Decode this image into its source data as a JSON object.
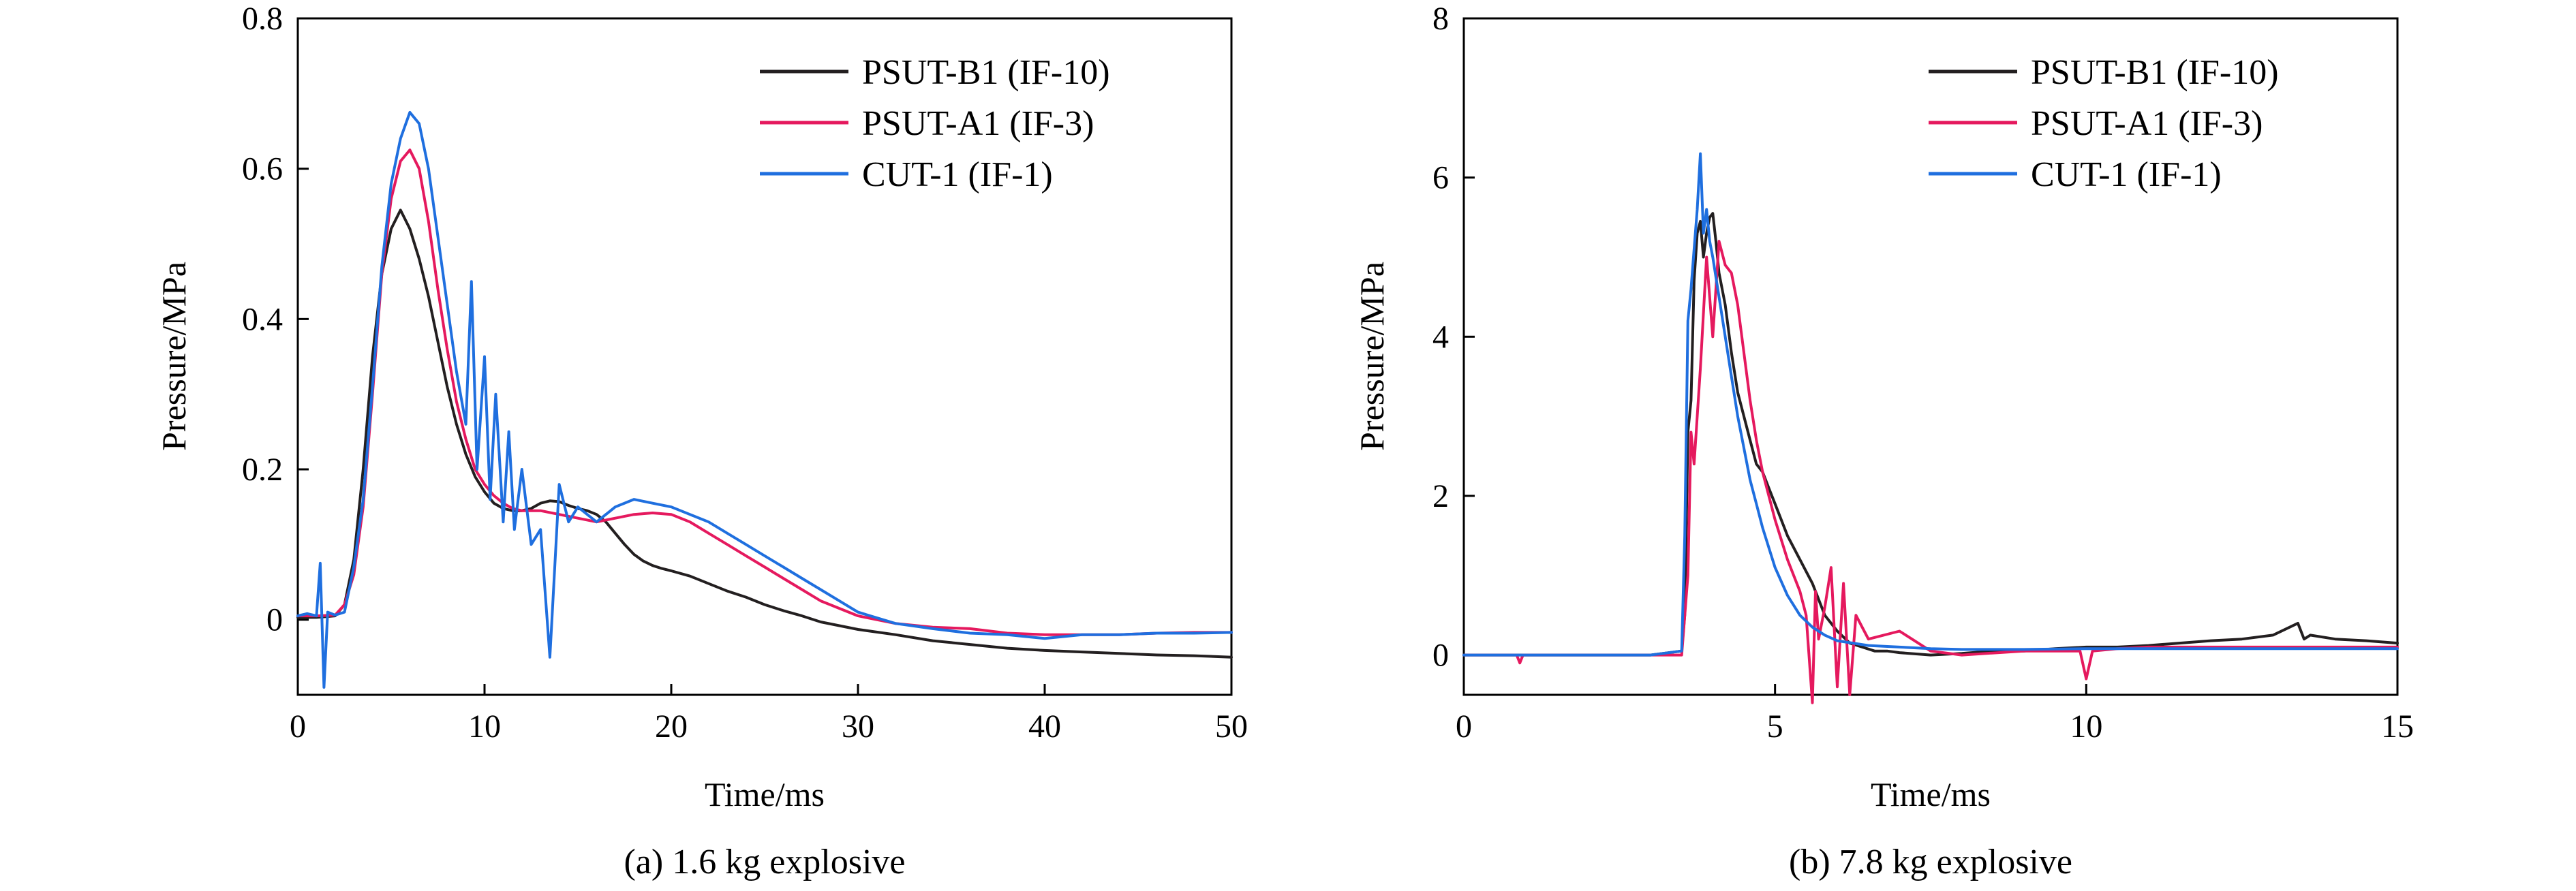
{
  "chart_data": [
    {
      "type": "line",
      "caption": "(a) 1.6 kg explosive",
      "xlabel": "Time/ms",
      "ylabel": "Pressure/MPa",
      "xlim": [
        0,
        50
      ],
      "ylim": [
        -0.1,
        0.8
      ],
      "xticks": [
        0,
        10,
        20,
        30,
        40,
        50
      ],
      "yticks": [
        0,
        0.2,
        0.4,
        0.6,
        0.8
      ],
      "ytick_labels": [
        "0",
        "0.2",
        "0.4",
        "0.6",
        "0.8"
      ],
      "legend_position": "top-right",
      "grid": false,
      "series": [
        {
          "name": "PSUT-B1 (IF-10)",
          "color": "#231f20",
          "x": [
            0,
            1,
            2,
            2.5,
            3,
            3.5,
            4,
            4.5,
            5,
            5.5,
            6,
            6.5,
            7,
            7.5,
            8,
            8.5,
            9,
            9.5,
            10,
            10.5,
            11,
            11.5,
            12,
            12.5,
            13,
            13.5,
            14,
            14.5,
            15,
            15.5,
            16,
            16.5,
            17,
            17.5,
            18,
            18.5,
            19,
            19.5,
            20,
            21,
            22,
            23,
            24,
            25,
            26,
            27,
            28,
            29,
            30,
            32,
            34,
            36,
            38,
            40,
            42,
            44,
            46,
            48,
            50
          ],
          "y": [
            0.003,
            0.003,
            0.005,
            0.02,
            0.08,
            0.2,
            0.35,
            0.46,
            0.52,
            0.545,
            0.52,
            0.48,
            0.43,
            0.37,
            0.31,
            0.26,
            0.22,
            0.19,
            0.17,
            0.155,
            0.148,
            0.145,
            0.145,
            0.148,
            0.155,
            0.158,
            0.157,
            0.152,
            0.148,
            0.145,
            0.14,
            0.13,
            0.115,
            0.1,
            0.087,
            0.078,
            0.072,
            0.068,
            0.065,
            0.058,
            0.048,
            0.038,
            0.03,
            0.02,
            0.012,
            0.005,
            -0.003,
            -0.008,
            -0.013,
            -0.02,
            -0.028,
            -0.033,
            -0.038,
            -0.041,
            -0.043,
            -0.045,
            -0.047,
            -0.048,
            -0.05
          ]
        },
        {
          "name": "PSUT-A1 (IF-3)",
          "color": "#e5195e",
          "x": [
            0,
            1,
            2,
            2.5,
            3,
            3.5,
            4,
            4.5,
            5,
            5.5,
            6,
            6.5,
            7,
            7.5,
            8,
            8.5,
            9,
            9.5,
            10,
            10.5,
            11,
            11.5,
            12,
            13,
            14,
            15,
            16,
            17,
            18,
            19,
            20,
            21,
            22,
            23,
            24,
            25,
            26,
            27,
            28,
            29,
            30,
            32,
            34,
            36,
            38,
            40,
            42,
            44,
            46,
            48,
            50
          ],
          "y": [
            0.005,
            0.005,
            0.006,
            0.02,
            0.06,
            0.15,
            0.3,
            0.46,
            0.56,
            0.61,
            0.625,
            0.6,
            0.53,
            0.44,
            0.36,
            0.29,
            0.24,
            0.2,
            0.18,
            0.165,
            0.155,
            0.148,
            0.145,
            0.145,
            0.14,
            0.135,
            0.13,
            0.135,
            0.14,
            0.142,
            0.14,
            0.13,
            0.115,
            0.1,
            0.085,
            0.07,
            0.055,
            0.04,
            0.025,
            0.015,
            0.005,
            -0.005,
            -0.01,
            -0.012,
            -0.018,
            -0.02,
            -0.02,
            -0.02,
            -0.018,
            -0.017,
            -0.017
          ]
        },
        {
          "name": "CUT-1 (IF-1)",
          "color": "#1f6fdf",
          "x": [
            0,
            0.5,
            1,
            1.2,
            1.4,
            1.6,
            2,
            2.5,
            3,
            3.5,
            4,
            4.5,
            5,
            5.5,
            6,
            6.5,
            7,
            7.5,
            8,
            8.5,
            9,
            9.3,
            9.6,
            10,
            10.3,
            10.6,
            11,
            11.3,
            11.6,
            12,
            12.5,
            13,
            13.5,
            14,
            14.5,
            15,
            16,
            17,
            18,
            19,
            20,
            21,
            22,
            23,
            24,
            25,
            26,
            27,
            28,
            29,
            30,
            32,
            34,
            36,
            38,
            40,
            42,
            44,
            46,
            48,
            50
          ],
          "y": [
            0.005,
            0.008,
            0.005,
            0.075,
            -0.09,
            0.01,
            0.006,
            0.01,
            0.07,
            0.16,
            0.31,
            0.47,
            0.58,
            0.64,
            0.675,
            0.66,
            0.6,
            0.51,
            0.42,
            0.33,
            0.26,
            0.45,
            0.2,
            0.35,
            0.16,
            0.3,
            0.13,
            0.25,
            0.12,
            0.2,
            0.1,
            0.12,
            -0.05,
            0.18,
            0.13,
            0.15,
            0.13,
            0.15,
            0.16,
            0.155,
            0.15,
            0.14,
            0.13,
            0.115,
            0.1,
            0.085,
            0.07,
            0.055,
            0.04,
            0.025,
            0.01,
            -0.005,
            -0.012,
            -0.018,
            -0.02,
            -0.025,
            -0.02,
            -0.02,
            -0.018,
            -0.018,
            -0.017
          ]
        }
      ]
    },
    {
      "type": "line",
      "caption": "(b) 7.8 kg explosive",
      "xlabel": "Time/ms",
      "ylabel": "Pressure/MPa",
      "xlim": [
        0,
        15
      ],
      "ylim": [
        -0.5,
        8
      ],
      "xticks": [
        0,
        5,
        10,
        15
      ],
      "yticks": [
        0,
        2,
        4,
        6,
        8
      ],
      "ytick_labels": [
        "0",
        "2",
        "4",
        "6",
        "8"
      ],
      "legend_position": "top-right",
      "grid": false,
      "series": [
        {
          "name": "PSUT-B1 (IF-10)",
          "color": "#231f20",
          "x": [
            0,
            3,
            3.5,
            3.55,
            3.6,
            3.65,
            3.7,
            3.75,
            3.8,
            3.85,
            3.9,
            3.95,
            4.0,
            4.05,
            4.1,
            4.2,
            4.3,
            4.4,
            4.5,
            4.6,
            4.7,
            4.8,
            4.9,
            5.0,
            5.2,
            5.4,
            5.6,
            5.8,
            6.0,
            6.2,
            6.4,
            6.6,
            6.8,
            7.0,
            7.5,
            8.0,
            8.5,
            9.0,
            9.5,
            10,
            10.5,
            11,
            11.5,
            12,
            12.5,
            13,
            13.4,
            13.5,
            13.6,
            14,
            14.5,
            15
          ],
          "y": [
            0.0,
            0.0,
            0.05,
            0.5,
            2.8,
            3.2,
            4.7,
            5.3,
            5.45,
            5.0,
            5.3,
            5.5,
            5.55,
            5.2,
            4.8,
            4.4,
            3.8,
            3.3,
            3.0,
            2.7,
            2.4,
            2.3,
            2.1,
            1.9,
            1.5,
            1.2,
            0.9,
            0.5,
            0.3,
            0.15,
            0.1,
            0.05,
            0.05,
            0.03,
            0.0,
            0.02,
            0.05,
            0.05,
            0.08,
            0.1,
            0.1,
            0.12,
            0.15,
            0.18,
            0.2,
            0.25,
            0.4,
            0.2,
            0.25,
            0.2,
            0.18,
            0.15
          ]
        },
        {
          "name": "PSUT-A1 (IF-3)",
          "color": "#e5195e",
          "x": [
            0,
            0.85,
            0.9,
            0.95,
            3,
            3.5,
            3.6,
            3.65,
            3.7,
            3.8,
            3.9,
            4.0,
            4.1,
            4.2,
            4.3,
            4.4,
            4.5,
            4.6,
            4.7,
            4.8,
            5.0,
            5.2,
            5.4,
            5.5,
            5.6,
            5.65,
            5.7,
            5.8,
            5.9,
            6.0,
            6.1,
            6.2,
            6.3,
            6.5,
            7.0,
            7.5,
            8.0,
            9.0,
            9.9,
            10.0,
            10.1,
            10.5,
            11,
            12,
            13,
            14,
            15
          ],
          "y": [
            0.0,
            0.0,
            -0.1,
            0.0,
            0.0,
            0.0,
            1.0,
            2.8,
            2.4,
            3.6,
            5.0,
            4.0,
            5.2,
            4.9,
            4.8,
            4.4,
            3.8,
            3.2,
            2.7,
            2.3,
            1.7,
            1.2,
            0.8,
            0.5,
            -0.6,
            0.8,
            0.2,
            0.6,
            1.1,
            -0.4,
            0.9,
            -0.5,
            0.5,
            0.2,
            0.3,
            0.05,
            0.0,
            0.05,
            0.05,
            -0.3,
            0.05,
            0.08,
            0.1,
            0.1,
            0.1,
            0.1,
            0.1
          ]
        },
        {
          "name": "CUT-1 (IF-1)",
          "color": "#1f6fdf",
          "x": [
            0,
            3,
            3.5,
            3.55,
            3.6,
            3.65,
            3.7,
            3.75,
            3.8,
            3.85,
            3.9,
            3.95,
            4.0,
            4.1,
            4.2,
            4.3,
            4.4,
            4.5,
            4.6,
            4.7,
            4.8,
            5.0,
            5.2,
            5.4,
            5.6,
            5.8,
            6.0,
            6.5,
            7.0,
            7.5,
            8.0,
            9.0,
            10,
            11,
            12,
            13,
            14,
            15
          ],
          "y": [
            0.0,
            0.0,
            0.05,
            1.5,
            4.2,
            4.6,
            5.1,
            5.6,
            6.3,
            5.3,
            5.6,
            5.2,
            5.0,
            4.5,
            4.0,
            3.5,
            3.0,
            2.6,
            2.2,
            1.9,
            1.6,
            1.1,
            0.75,
            0.5,
            0.35,
            0.25,
            0.18,
            0.12,
            0.1,
            0.08,
            0.07,
            0.07,
            0.08,
            0.08,
            0.08,
            0.08,
            0.08,
            0.08
          ]
        }
      ]
    }
  ]
}
